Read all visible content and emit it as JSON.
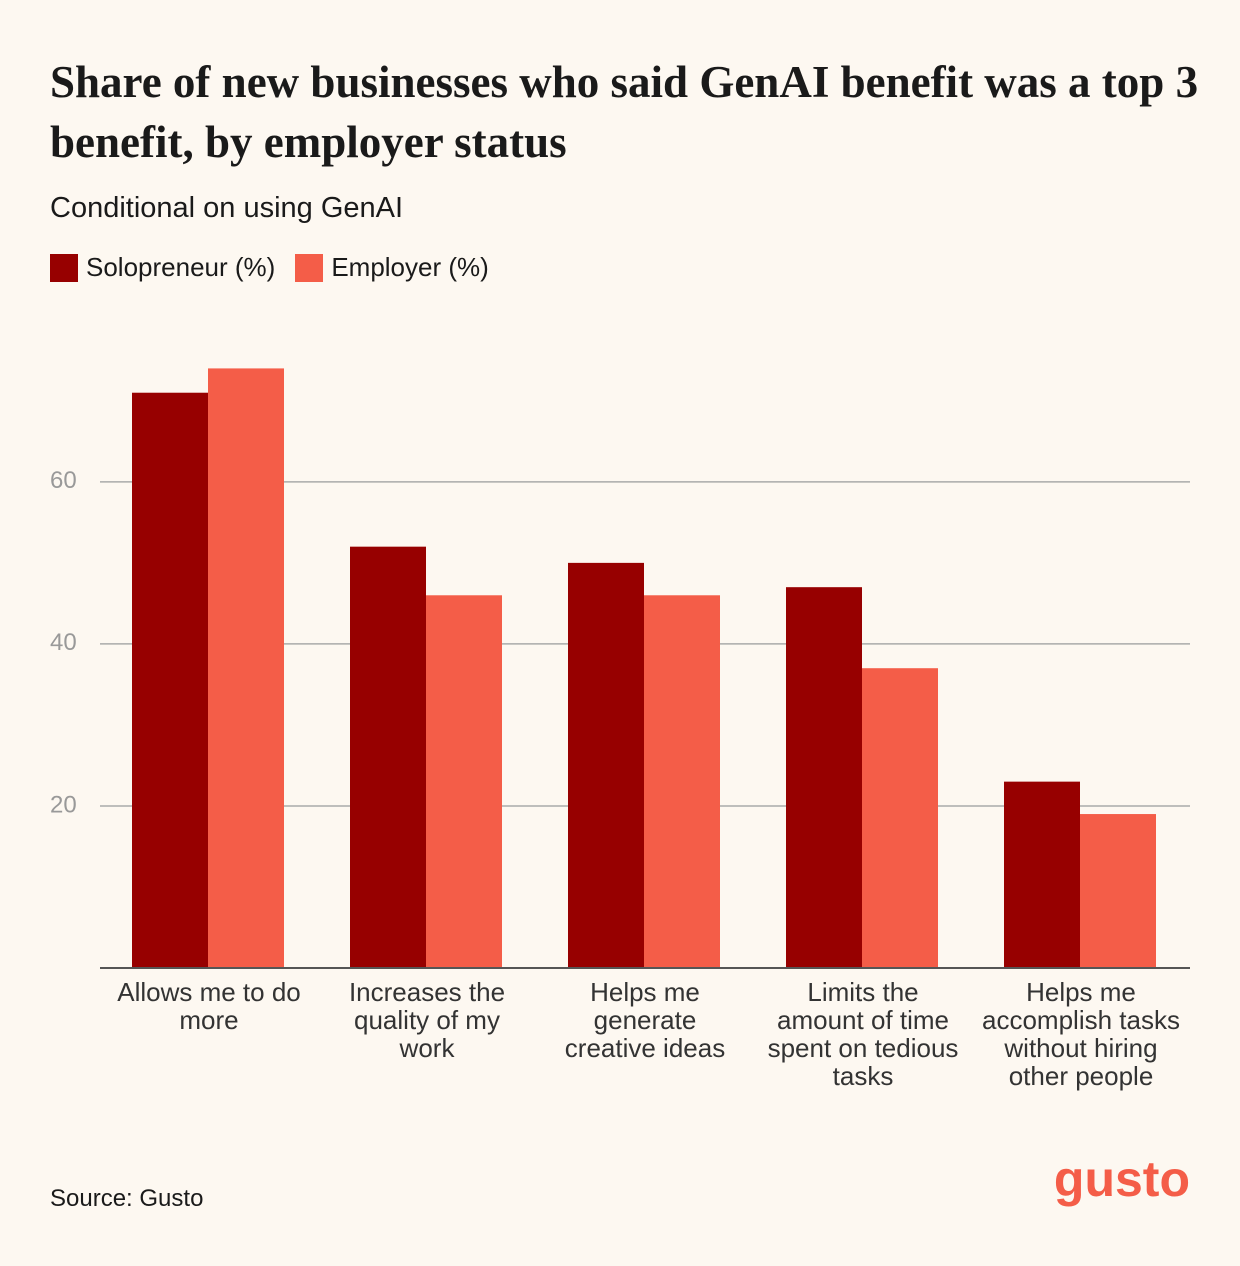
{
  "chart_data": {
    "type": "bar",
    "title": "Share of new businesses who said GenAI benefit was a top 3 benefit, by employer status",
    "subtitle": "Conditional on using GenAI",
    "categories": [
      "Allows me to do more",
      "Increases the quality of my work",
      "Helps me generate creative ideas",
      "Limits the amount of time spent on tedious tasks",
      "Helps me accomplish tasks without hiring other people"
    ],
    "series": [
      {
        "name": "Solopreneur (%)",
        "color": "#970000",
        "values": [
          71,
          52,
          50,
          47,
          23
        ]
      },
      {
        "name": "Employer (%)",
        "color": "#f45d48",
        "values": [
          74,
          46,
          46,
          37,
          19
        ]
      }
    ],
    "ylim": [
      0,
      78
    ],
    "yticks": [
      20,
      40,
      60
    ],
    "grid": true,
    "source": "Source: Gusto",
    "logo": "gusto"
  }
}
